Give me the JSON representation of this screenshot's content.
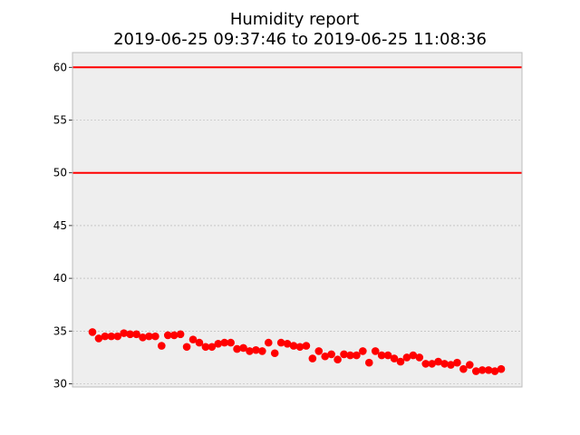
{
  "chart_data": {
    "type": "scatter",
    "title": [
      "Humidity report",
      "2019-06-25 09:37:46 to 2019-06-25 11:08:36"
    ],
    "xlabel": "",
    "ylabel": "",
    "x_range": [
      "2019-06-25 09:37:46",
      "2019-06-25 11:08:36"
    ],
    "x_ticks_visible": false,
    "ylim": [
      29.7,
      61.4
    ],
    "yticks": [
      30,
      35,
      40,
      45,
      50,
      55,
      60
    ],
    "grid": "horizontal dotted",
    "legend": "none",
    "background_color": "#eeeeee",
    "series": [
      {
        "color": "#ff0000",
        "marker": "circle",
        "values": [
          34.9,
          34.3,
          34.5,
          34.5,
          34.5,
          34.8,
          34.7,
          34.7,
          34.4,
          34.5,
          34.5,
          33.6,
          34.6,
          34.6,
          34.7,
          33.5,
          34.2,
          33.9,
          33.5,
          33.5,
          33.8,
          33.9,
          33.9,
          33.3,
          33.4,
          33.1,
          33.2,
          33.1,
          33.9,
          32.9,
          33.9,
          33.8,
          33.6,
          33.5,
          33.6,
          32.4,
          33.1,
          32.6,
          32.8,
          32.3,
          32.8,
          32.7,
          32.7,
          33.1,
          32.0,
          33.1,
          32.7,
          32.7,
          32.4,
          32.1,
          32.5,
          32.7,
          32.5,
          31.9,
          31.9,
          32.1,
          31.9,
          31.8,
          32.0,
          31.4,
          31.8,
          31.2,
          31.3,
          31.3,
          31.2,
          31.4
        ]
      }
    ],
    "reference_lines": [
      {
        "y": 60,
        "color": "#ff0000"
      },
      {
        "y": 50,
        "color": "#ff0000"
      }
    ]
  }
}
